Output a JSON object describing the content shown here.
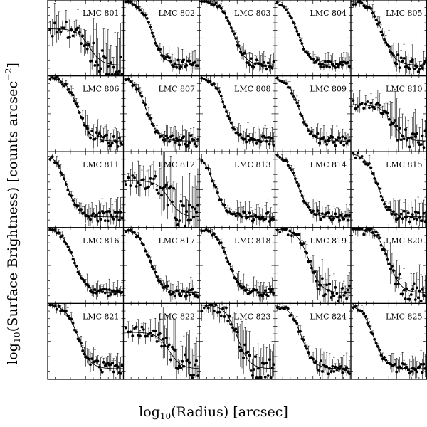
{
  "axes": {
    "ylabel_prefix": "log",
    "ylabel_sub": "10",
    "ylabel_mid": "(Surface Brightness) [counts arcsec",
    "ylabel_sup": "−2",
    "ylabel_end": "]",
    "xlabel_prefix": "log",
    "xlabel_sub": "10",
    "xlabel_rest": "(Radius) [arcsec]"
  },
  "chart_data": {
    "type": "scatter",
    "grid": false,
    "layout": "5x5 small multiples",
    "panels": [
      {
        "label": "LMC 801",
        "style": "flat",
        "core": 0.55,
        "noise": 0.35,
        "seed": 1
      },
      {
        "label": "LMC 802",
        "style": "normal",
        "core": 0.38,
        "noise": 0.1,
        "seed": 2
      },
      {
        "label": "LMC 803",
        "style": "normal",
        "core": 0.45,
        "noise": 0.09,
        "seed": 3
      },
      {
        "label": "LMC 804",
        "style": "normal",
        "core": 0.3,
        "noise": 0.07,
        "seed": 4
      },
      {
        "label": "LMC 805",
        "style": "normal",
        "core": 0.42,
        "noise": 0.14,
        "seed": 5
      },
      {
        "label": "LMC 806",
        "style": "normal",
        "core": 0.4,
        "noise": 0.12,
        "seed": 6
      },
      {
        "label": "LMC 807",
        "style": "normal",
        "core": 0.3,
        "noise": 0.12,
        "seed": 7
      },
      {
        "label": "LMC 808",
        "style": "normal",
        "core": 0.35,
        "noise": 0.1,
        "seed": 8
      },
      {
        "label": "LMC 809",
        "style": "normal",
        "core": 0.32,
        "noise": 0.1,
        "seed": 9
      },
      {
        "label": "LMC 810",
        "style": "flat",
        "core": 0.55,
        "noise": 0.22,
        "seed": 10
      },
      {
        "label": "LMC 811",
        "style": "normal",
        "core": 0.25,
        "noise": 0.12,
        "seed": 11
      },
      {
        "label": "LMC 812",
        "style": "flat",
        "core": 0.6,
        "noise": 0.35,
        "seed": 12
      },
      {
        "label": "LMC 813",
        "style": "normal",
        "core": 0.2,
        "noise": 0.1,
        "seed": 13
      },
      {
        "label": "LMC 814",
        "style": "normal",
        "core": 0.3,
        "noise": 0.08,
        "seed": 14
      },
      {
        "label": "LMC 815",
        "style": "normal",
        "core": 0.35,
        "noise": 0.13,
        "seed": 15
      },
      {
        "label": "LMC 816",
        "style": "normal",
        "core": 0.35,
        "noise": 0.08,
        "seed": 16
      },
      {
        "label": "LMC 817",
        "style": "normal",
        "core": 0.35,
        "noise": 0.09,
        "seed": 17
      },
      {
        "label": "LMC 818",
        "style": "normal",
        "core": 0.38,
        "noise": 0.09,
        "seed": 18
      },
      {
        "label": "LMC 819",
        "style": "normal",
        "core": 0.45,
        "noise": 0.18,
        "seed": 19
      },
      {
        "label": "LMC 820",
        "style": "normal",
        "core": 0.5,
        "noise": 0.2,
        "seed": 20
      },
      {
        "label": "LMC 821",
        "style": "normal",
        "core": 0.4,
        "noise": 0.12,
        "seed": 21
      },
      {
        "label": "LMC 822",
        "style": "flat",
        "core": 0.6,
        "noise": 0.25,
        "seed": 22
      },
      {
        "label": "LMC 823",
        "style": "normal",
        "core": 0.5,
        "noise": 0.3,
        "seed": 23
      },
      {
        "label": "LMC 824",
        "style": "normal",
        "core": 0.35,
        "noise": 0.12,
        "seed": 24
      },
      {
        "label": "LMC 825",
        "style": "normal",
        "core": 0.3,
        "noise": 0.1,
        "seed": 25
      }
    ]
  }
}
